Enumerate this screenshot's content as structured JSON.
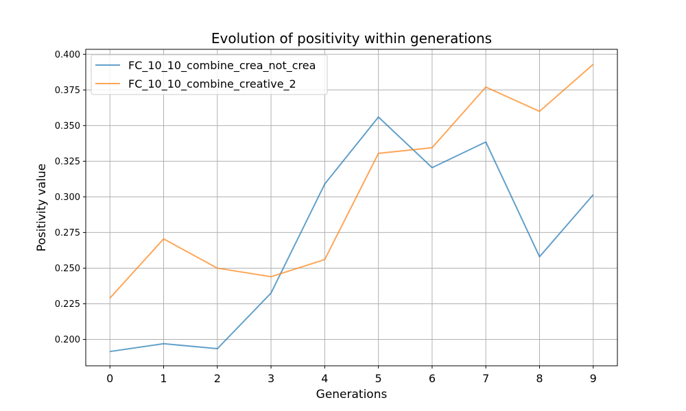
{
  "chart_data": {
    "type": "line",
    "title": "Evolution of positivity within generations",
    "xlabel": "Generations",
    "ylabel": "Positivity value",
    "x": [
      0,
      1,
      2,
      3,
      4,
      5,
      6,
      7,
      8,
      9
    ],
    "x_tick_labels": [
      "0",
      "1",
      "2",
      "3",
      "4",
      "5",
      "6",
      "7",
      "8",
      "9"
    ],
    "xlim": [
      -0.45,
      9.45
    ],
    "ylim": [
      0.1815,
      0.4035
    ],
    "y_ticks": [
      0.2,
      0.225,
      0.25,
      0.275,
      0.3,
      0.325,
      0.35,
      0.375,
      0.4
    ],
    "y_tick_labels": [
      "0.200",
      "0.225",
      "0.250",
      "0.275",
      "0.300",
      "0.325",
      "0.350",
      "0.375",
      "0.400"
    ],
    "grid": true,
    "legend_position": "upper-left",
    "series": [
      {
        "name": "FC_10_10_combine_crea_not_crea",
        "color": "#1f77b4",
        "values": [
          0.1915,
          0.197,
          0.1935,
          0.2325,
          0.309,
          0.356,
          0.3205,
          0.3385,
          0.258,
          0.3015
        ]
      },
      {
        "name": "FC_10_10_combine_creative_2",
        "color": "#ff7f0e",
        "values": [
          0.229,
          0.2705,
          0.25,
          0.244,
          0.256,
          0.3305,
          0.3345,
          0.377,
          0.36,
          0.393
        ]
      }
    ]
  }
}
